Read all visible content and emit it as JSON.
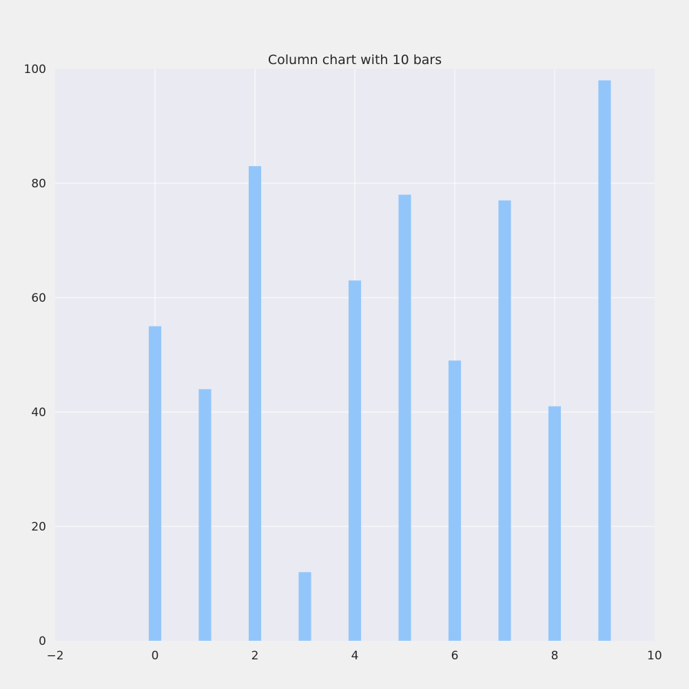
{
  "chart_data": {
    "type": "bar",
    "title": "Column chart with 10 bars",
    "xlabel": "",
    "ylabel": "",
    "x": [
      0,
      1,
      2,
      3,
      4,
      5,
      6,
      7,
      8,
      9
    ],
    "values": [
      55,
      44,
      83,
      12,
      63,
      78,
      49,
      77,
      41,
      98
    ],
    "xlim": [
      -2,
      10
    ],
    "ylim": [
      0,
      100
    ],
    "xticks": [
      -2,
      0,
      2,
      4,
      6,
      8,
      10
    ],
    "yticks": [
      0,
      20,
      40,
      60,
      80,
      100
    ],
    "xtick_labels": [
      "−2",
      "0",
      "2",
      "4",
      "6",
      "8",
      "10"
    ],
    "ytick_labels": [
      "0",
      "20",
      "40",
      "60",
      "80",
      "100"
    ],
    "bar_width": 0.25,
    "grid": true,
    "legend": "none",
    "colors": {
      "bar": "#92c6fb",
      "plot_background": "#eaeaf2",
      "figure_background": "#f0f0f0",
      "grid": "#ffffff",
      "text": "#262626"
    }
  }
}
